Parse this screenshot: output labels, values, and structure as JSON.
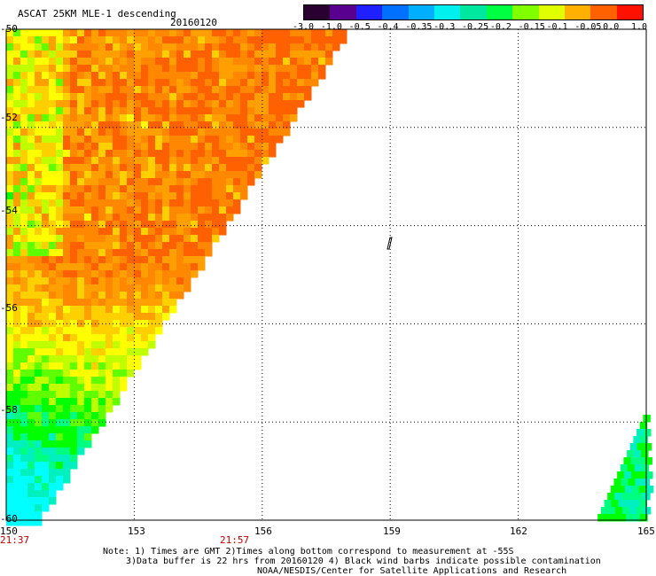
{
  "header": {
    "title": "ASCAT 25KM MLE-1 descending",
    "date": "20160120"
  },
  "colorbar": {
    "ticks": [
      "-3.0",
      "-1.0",
      "-0.5",
      "-0.4",
      "-0.35",
      "-0.3",
      "-0.25",
      "-0.2",
      "-0.15",
      "-0.1",
      "-0.05",
      "0.0",
      "1.0"
    ],
    "colors": [
      "#2a0030",
      "#5a0090",
      "#2020ff",
      "#0070ff",
      "#00b0ff",
      "#00f0f0",
      "#00e8a0",
      "#00ff40",
      "#80ff00",
      "#e0ff00",
      "#ffb000",
      "#ff6000",
      "#ff1000"
    ]
  },
  "map": {
    "lon_range": [
      150,
      165
    ],
    "lat_range": [
      -50,
      -60
    ],
    "lon_labels": [
      "150",
      "153",
      "156",
      "159",
      "162",
      "165"
    ],
    "lat_labels": [
      "-50",
      "-52",
      "-54",
      "-56",
      "-58",
      "-60"
    ],
    "time_labels": [
      "21:37",
      "21:57"
    ],
    "palette": [
      "#00ffff",
      "#00f0c0",
      "#00ff80",
      "#00ff00",
      "#60ff00",
      "#c0ff00",
      "#ffff00",
      "#ffd000",
      "#ffa000",
      "#ff8800",
      "#ff6000"
    ]
  },
  "footer": {
    "line1": "Note: 1) Times are GMT 2)Times along bottom correspond to measurement at -55S",
    "line2": "3)Data buffer is 22 hrs from 20160120 4) Black wind barbs indicate possible contamination",
    "line3": "NOAA/NESDIS/Center for Satellite Applications and Research"
  }
}
